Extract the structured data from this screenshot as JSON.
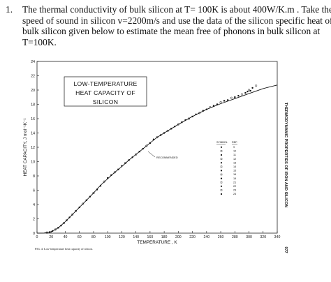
{
  "question": {
    "number": "1.",
    "lines": [
      "The thermal conductivity of bulk silicon at T= 100K is about 400W/K.m . Take  the",
      "speed of sound  in silicon  v=2200m/s and use the data of the silicon specific heat of",
      "bulk silicon given below to estimate the mean free  of phonons in bulk silicon at",
      "T=100K."
    ]
  },
  "figure": {
    "caption": "FIG. 4. Low-temperature heat capacity of silicon.",
    "side_text": "THERMODYNAMIC PROPERTIES OF IRON AND SILICON",
    "page_number": "977",
    "recommended_label": "RECOMMENDED"
  },
  "chart_data": {
    "type": "scatter",
    "title": [
      "LOW-TEMPERATURE",
      "HEAT CAPACITY OF",
      "SILICON"
    ],
    "xlabel": "TEMPERATURE , K",
    "ylabel": "HEAT CAPACITY, J mol⁻¹K⁻¹",
    "xlim": [
      0,
      340
    ],
    "ylim": [
      0,
      24
    ],
    "xticks": [
      "0",
      "20",
      "40",
      "60",
      "80",
      "100",
      "120",
      "140",
      "160",
      "180",
      "200",
      "220",
      "240",
      "260",
      "280",
      "300",
      "320",
      "340"
    ],
    "yticks": [
      "0",
      "2",
      "4",
      "6",
      "8",
      "10",
      "12",
      "14",
      "16",
      "18",
      "20",
      "22",
      "24"
    ],
    "grid": false,
    "legend": {
      "placement": "right",
      "header": [
        "SYMBOL",
        "REF."
      ],
      "refs": [
        "9",
        "10",
        "11",
        "12",
        "13",
        "14",
        "15",
        "16",
        "19",
        "21",
        "22",
        "23",
        "24"
      ]
    },
    "recommended_curve": {
      "x": [
        0,
        10,
        20,
        30,
        40,
        50,
        60,
        70,
        80,
        90,
        100,
        110,
        120,
        130,
        140,
        150,
        160,
        170,
        180,
        190,
        200,
        220,
        240,
        260,
        280,
        300,
        320,
        340
      ],
      "y": [
        0,
        0.02,
        0.19,
        0.73,
        1.6,
        2.6,
        3.6,
        4.6,
        5.6,
        6.7,
        7.6,
        8.5,
        9.3,
        10.2,
        11.0,
        11.8,
        12.6,
        13.4,
        14.0,
        14.6,
        15.2,
        16.3,
        17.3,
        18.1,
        18.8,
        19.5,
        20.2,
        20.7
      ]
    },
    "series": [
      {
        "x": [
          14,
          18,
          22,
          26,
          30,
          34,
          38,
          42,
          46,
          50,
          55,
          60,
          65,
          70,
          75,
          80,
          85,
          90,
          95,
          100,
          105,
          110,
          115,
          120,
          125,
          130,
          135,
          140,
          145,
          150,
          155,
          160,
          165,
          170,
          175,
          180,
          185,
          190,
          195,
          200,
          205,
          210,
          215,
          220,
          225,
          230,
          235,
          240,
          245,
          250,
          255,
          260,
          265,
          270,
          275,
          280,
          285,
          290,
          295,
          298,
          300,
          302,
          305,
          310
        ],
        "y": [
          0.08,
          0.15,
          0.3,
          0.5,
          0.75,
          1.05,
          1.4,
          1.8,
          2.2,
          2.6,
          3.1,
          3.6,
          4.1,
          4.6,
          5.1,
          5.6,
          6.1,
          6.6,
          7.2,
          7.7,
          8.1,
          8.5,
          8.9,
          9.4,
          9.8,
          10.2,
          10.6,
          11.0,
          11.4,
          11.8,
          12.2,
          12.6,
          13.1,
          13.4,
          13.7,
          14.0,
          14.3,
          14.6,
          14.9,
          15.2,
          15.5,
          15.8,
          16.0,
          16.3,
          16.6,
          16.8,
          17.1,
          17.3,
          17.6,
          17.8,
          18.0,
          18.3,
          18.5,
          18.6,
          18.9,
          19.0,
          19.2,
          19.4,
          19.6,
          19.8,
          20.0,
          19.9,
          20.3,
          20.6
        ]
      }
    ]
  }
}
